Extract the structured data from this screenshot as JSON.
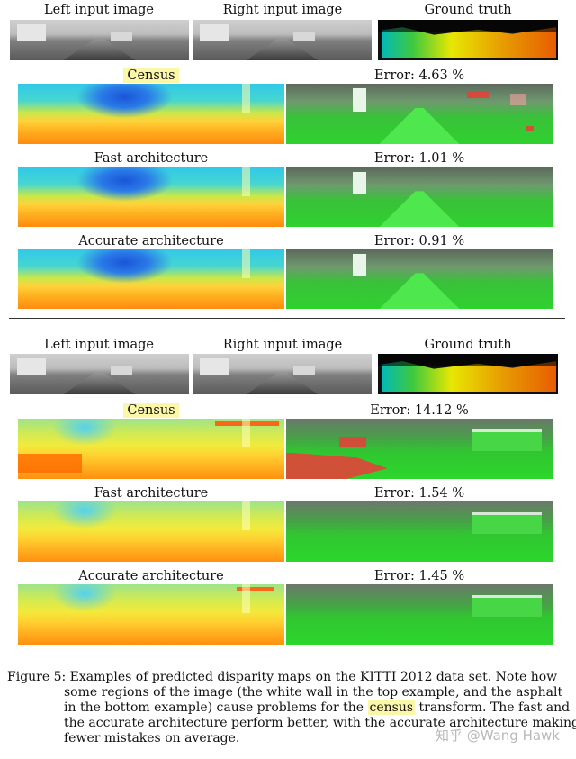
{
  "top_block": {
    "header": {
      "left": "Left input image",
      "right": "Right input image",
      "gt": "Ground truth"
    },
    "rows": [
      {
        "method": "Census",
        "highlight": true,
        "error": "Error: 4.63 %"
      },
      {
        "method": "Fast architecture",
        "highlight": false,
        "error": "Error: 1.01 %"
      },
      {
        "method": "Accurate architecture",
        "highlight": false,
        "error": "Error: 0.91 %"
      }
    ]
  },
  "bottom_block": {
    "header": {
      "left": "Left input image",
      "right": "Right input image",
      "gt": "Ground truth"
    },
    "rows": [
      {
        "method": "Census",
        "highlight": true,
        "error": "Error: 14.12 %"
      },
      {
        "method": "Fast architecture",
        "highlight": false,
        "error": "Error: 1.54 %"
      },
      {
        "method": "Accurate architecture",
        "highlight": false,
        "error": "Error: 1.45 %"
      }
    ]
  },
  "caption": {
    "line1": "Figure 5: Examples of predicted disparity maps on the KITTI 2012 data set. Note how",
    "line2": "some regions of the image (the white wall in the top example, and the asphalt",
    "line3_a": "in the bottom example) cause problems for the ",
    "line3_hl": "census",
    "line3_b": " transform. The fast and",
    "line4": "the accurate architecture perform better, with the accurate architecture making",
    "line5": "fewer mistakes on average."
  },
  "watermark": "知乎 @Wang Hawk"
}
